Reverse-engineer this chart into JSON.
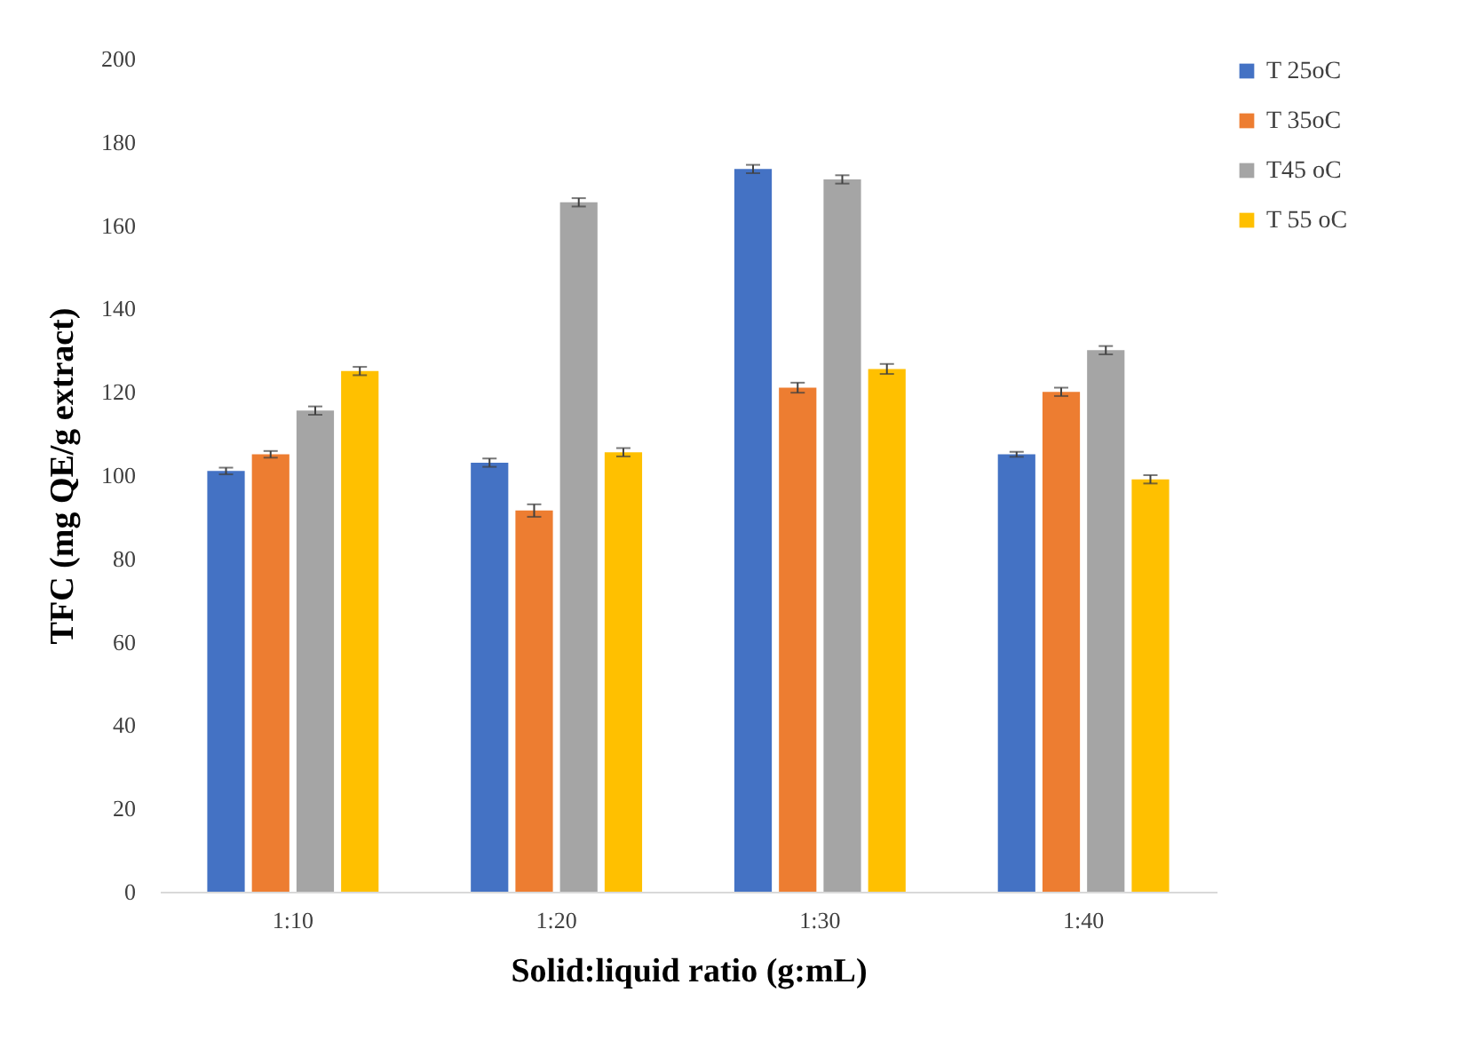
{
  "chart_data": {
    "type": "bar",
    "xlabel": "Solid:liquid ratio (g:mL)",
    "ylabel": "TFC (mg QE/g extract)",
    "categories": [
      "1:10",
      "1:20",
      "1:30",
      "1:40"
    ],
    "series": [
      {
        "name": "T 25oC",
        "color": "#4472c4",
        "values": [
          101,
          103,
          173.5,
          105
        ],
        "errors": [
          0.8,
          1,
          1,
          0.6
        ]
      },
      {
        "name": "T 35oC",
        "color": "#ed7d31",
        "values": [
          105,
          91.5,
          121,
          120
        ],
        "errors": [
          0.8,
          1.5,
          1.2,
          1
        ]
      },
      {
        "name": "T45 oC",
        "color": "#a5a5a5",
        "values": [
          115.5,
          165.5,
          171,
          130
        ],
        "errors": [
          1,
          1,
          1,
          1
        ]
      },
      {
        "name": "T 55 oC",
        "color": "#ffc000",
        "values": [
          125,
          105.5,
          125.5,
          99
        ],
        "errors": [
          1,
          1,
          1.2,
          1
        ]
      }
    ],
    "ylim": [
      0,
      200
    ],
    "yticks": [
      0,
      20,
      40,
      60,
      80,
      100,
      120,
      140,
      160,
      180,
      200
    ],
    "grid": false,
    "legend": "right"
  }
}
